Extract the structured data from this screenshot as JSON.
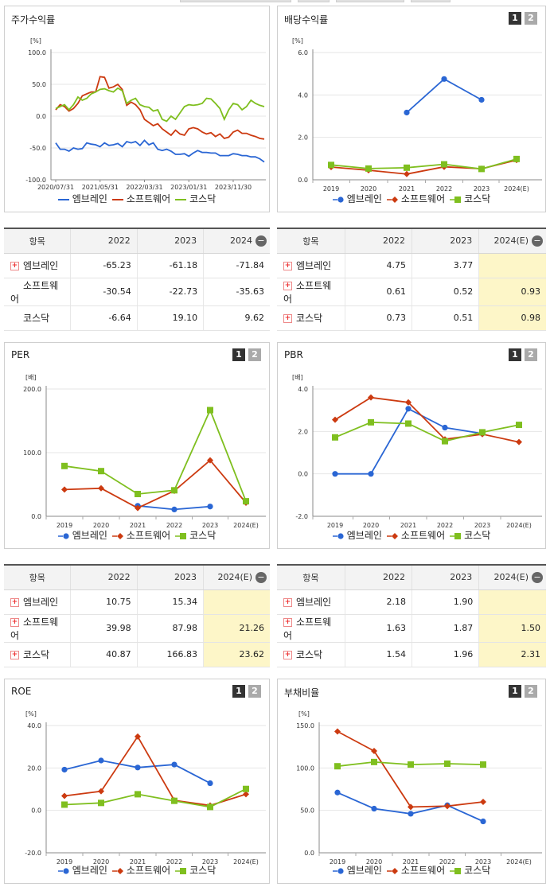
{
  "colors": {
    "embrain": "#2a66d4",
    "software": "#cc3a10",
    "kosdaq": "#7fbf1f"
  },
  "legend": [
    "엠브레인",
    "소프트웨어",
    "코스닥"
  ],
  "pager": [
    "1",
    "2"
  ],
  "panels": {
    "stock": {
      "title": "주가수익률",
      "unit": "[%]"
    },
    "div": {
      "title": "배당수익률",
      "unit": "[%]"
    },
    "per": {
      "title": "PER",
      "unit": "[배]"
    },
    "pbr": {
      "title": "PBR",
      "unit": "[배]"
    },
    "roe": {
      "title": "ROE",
      "unit": "[%]"
    },
    "debt": {
      "title": "부채비율",
      "unit": "[%]"
    }
  },
  "tables": {
    "stock": {
      "headers": [
        "항목",
        "2022",
        "2023",
        "2024"
      ],
      "rows": [
        {
          "name": "엠브레인",
          "v": [
            "-65.23",
            "-61.18",
            "-71.84"
          ]
        },
        {
          "name": "소프트웨어",
          "v": [
            "-30.54",
            "-22.73",
            "-35.63"
          ]
        },
        {
          "name": "코스닥",
          "v": [
            "-6.64",
            "19.10",
            "9.62"
          ]
        }
      ]
    },
    "div": {
      "headers": [
        "항목",
        "2022",
        "2023",
        "2024(E)"
      ],
      "rows": [
        {
          "name": "엠브레인",
          "v": [
            "4.75",
            "3.77",
            ""
          ]
        },
        {
          "name": "소프트웨어",
          "v": [
            "0.61",
            "0.52",
            "0.93"
          ]
        },
        {
          "name": "코스닥",
          "v": [
            "0.73",
            "0.51",
            "0.98"
          ]
        }
      ]
    },
    "per": {
      "headers": [
        "항목",
        "2022",
        "2023",
        "2024(E)"
      ],
      "rows": [
        {
          "name": "엠브레인",
          "v": [
            "10.75",
            "15.34",
            ""
          ]
        },
        {
          "name": "소프트웨어",
          "v": [
            "39.98",
            "87.98",
            "21.26"
          ]
        },
        {
          "name": "코스닥",
          "v": [
            "40.87",
            "166.83",
            "23.62"
          ]
        }
      ]
    },
    "pbr": {
      "headers": [
        "항목",
        "2022",
        "2023",
        "2024(E)"
      ],
      "rows": [
        {
          "name": "엠브레인",
          "v": [
            "2.18",
            "1.90",
            ""
          ]
        },
        {
          "name": "소프트웨어",
          "v": [
            "1.63",
            "1.87",
            "1.50"
          ]
        },
        {
          "name": "코스닥",
          "v": [
            "1.54",
            "1.96",
            "2.31"
          ]
        }
      ]
    }
  },
  "chart_data": [
    {
      "id": "stock",
      "type": "line",
      "x": [
        "2020/07/31",
        "2020/08/31",
        "2020/09/30",
        "2020/10/31",
        "2020/11/30",
        "2020/12/31",
        "2021/01/31",
        "2021/02/28",
        "2021/03/31",
        "2021/04/30",
        "2021/05/31",
        "2021/06/30",
        "2021/07/31",
        "2021/08/31",
        "2021/09/30",
        "2021/10/31",
        "2021/11/30",
        "2021/12/31",
        "2022/01/31",
        "2022/02/28",
        "2022/03/31",
        "2022/04/30",
        "2022/05/31",
        "2022/06/30",
        "2022/07/31",
        "2022/08/31",
        "2022/09/30",
        "2022/10/31",
        "2022/11/30",
        "2022/12/31",
        "2023/01/31",
        "2023/02/28",
        "2023/03/31",
        "2023/04/30",
        "2023/05/31",
        "2023/06/30",
        "2023/07/31",
        "2023/08/31",
        "2023/09/30",
        "2023/10/31",
        "2023/11/30",
        "2023/12/31",
        "2024/01/31",
        "2024/02/29",
        "2024/03/31",
        "2024/04/30",
        "2024/05/31",
        "2024/06/30"
      ],
      "x_ticks": [
        "2020/07/31",
        "2021/05/31",
        "2022/03/31",
        "2023/01/31",
        "2023/11/30"
      ],
      "ylim": [
        -100,
        100
      ],
      "y_ticks": [
        "100.0",
        "50.0",
        "0.0",
        "-50.0",
        "-100.0"
      ],
      "series": [
        {
          "name": "엠브레인",
          "values": [
            -42,
            -52,
            -52,
            -55,
            -50,
            -52,
            -51,
            -42,
            -44,
            -45,
            -48,
            -42,
            -46,
            -45,
            -43,
            -48,
            -40,
            -42,
            -40,
            -46,
            -38,
            -45,
            -42,
            -52,
            -54,
            -52,
            -55,
            -60,
            -60,
            -59,
            -63,
            -58,
            -54,
            -57,
            -57,
            -58,
            -58,
            -62,
            -62,
            -62,
            -59,
            -60,
            -62,
            -62,
            -64,
            -64,
            -67,
            -72
          ]
        },
        {
          "name": "소프트웨어",
          "values": [
            10,
            18,
            15,
            8,
            12,
            20,
            32,
            35,
            38,
            38,
            62,
            61,
            44,
            46,
            50,
            42,
            17,
            22,
            18,
            10,
            -5,
            -10,
            -15,
            -12,
            -20,
            -25,
            -30,
            -22,
            -28,
            -30,
            -20,
            -18,
            -20,
            -25,
            -28,
            -26,
            -32,
            -28,
            -35,
            -33,
            -25,
            -22,
            -27,
            -27,
            -30,
            -32,
            -35,
            -36
          ]
        },
        {
          "name": "코스닥",
          "values": [
            12,
            15,
            18,
            10,
            18,
            30,
            25,
            28,
            35,
            38,
            42,
            43,
            40,
            38,
            44,
            40,
            20,
            25,
            28,
            18,
            15,
            14,
            8,
            10,
            -5,
            -8,
            0,
            -5,
            5,
            15,
            18,
            17,
            18,
            20,
            28,
            27,
            20,
            12,
            -5,
            10,
            20,
            18,
            10,
            15,
            25,
            20,
            17,
            15
          ]
        }
      ]
    },
    {
      "id": "div",
      "type": "line",
      "categories": [
        "2019",
        "2020",
        "2021",
        "2022",
        "2023",
        "2024(E)"
      ],
      "ylim": [
        0,
        6
      ],
      "y_ticks": [
        "6.0",
        "4.0",
        "2.0",
        "0.0"
      ],
      "series": [
        {
          "name": "엠브레인",
          "values": [
            null,
            null,
            3.17,
            4.75,
            3.77,
            null
          ]
        },
        {
          "name": "소프트웨어",
          "values": [
            0.6,
            0.45,
            0.27,
            0.61,
            0.52,
            0.93
          ]
        },
        {
          "name": "코스닥",
          "values": [
            0.7,
            0.53,
            0.57,
            0.73,
            0.51,
            0.98
          ]
        }
      ]
    },
    {
      "id": "per",
      "type": "line",
      "categories": [
        "2019",
        "2020",
        "2021",
        "2022",
        "2023",
        "2024(E)"
      ],
      "ylim": [
        0,
        200
      ],
      "y_ticks": [
        "200.0",
        "100.0",
        "0.0"
      ],
      "series": [
        {
          "name": "엠브레인",
          "values": [
            null,
            null,
            16.5,
            10.75,
            15.34,
            null
          ]
        },
        {
          "name": "소프트웨어",
          "values": [
            42,
            44,
            13,
            39.98,
            87.98,
            21.26
          ]
        },
        {
          "name": "코스닥",
          "values": [
            79,
            71,
            35,
            40.87,
            166.83,
            23.62
          ]
        }
      ]
    },
    {
      "id": "pbr",
      "type": "line",
      "categories": [
        "2019",
        "2020",
        "2021",
        "2022",
        "2023",
        "2024(E)"
      ],
      "ylim": [
        -2,
        4
      ],
      "y_ticks": [
        "4.0",
        "2.0",
        "0.0",
        "-2.0"
      ],
      "series": [
        {
          "name": "엠브레인",
          "values": [
            0.0,
            0.0,
            3.07,
            2.18,
            1.9,
            null
          ]
        },
        {
          "name": "소프트웨어",
          "values": [
            2.55,
            3.6,
            3.37,
            1.63,
            1.87,
            1.5
          ]
        },
        {
          "name": "코스닥",
          "values": [
            1.72,
            2.43,
            2.37,
            1.54,
            1.96,
            2.31
          ]
        }
      ]
    },
    {
      "id": "roe",
      "type": "line",
      "categories": [
        "2019",
        "2020",
        "2021",
        "2022",
        "2023",
        "2024(E)"
      ],
      "ylim": [
        -20,
        40
      ],
      "y_ticks": [
        "40.0",
        "20.0",
        "0.0",
        "-20.0"
      ],
      "series": [
        {
          "name": "엠브레인",
          "values": [
            19.2,
            23.5,
            20.2,
            21.6,
            12.8,
            null
          ]
        },
        {
          "name": "소프트웨어",
          "values": [
            6.8,
            9.0,
            34.8,
            4.7,
            2.3,
            7.6
          ]
        },
        {
          "name": "코스닥",
          "values": [
            2.7,
            3.5,
            7.6,
            4.5,
            1.6,
            10.1
          ]
        }
      ]
    },
    {
      "id": "debt",
      "type": "line",
      "categories": [
        "2019",
        "2020",
        "2021",
        "2022",
        "2023",
        "2024(E)"
      ],
      "ylim": [
        0,
        150
      ],
      "y_ticks": [
        "150.0",
        "100.0",
        "50.0",
        "0.0"
      ],
      "series": [
        {
          "name": "엠브레인",
          "values": [
            71,
            52,
            46,
            56,
            37,
            null
          ]
        },
        {
          "name": "소프트웨어",
          "values": [
            143,
            120,
            54,
            55,
            60,
            null
          ]
        },
        {
          "name": "코스닥",
          "values": [
            102,
            107,
            104,
            105,
            104,
            null
          ]
        }
      ]
    }
  ]
}
